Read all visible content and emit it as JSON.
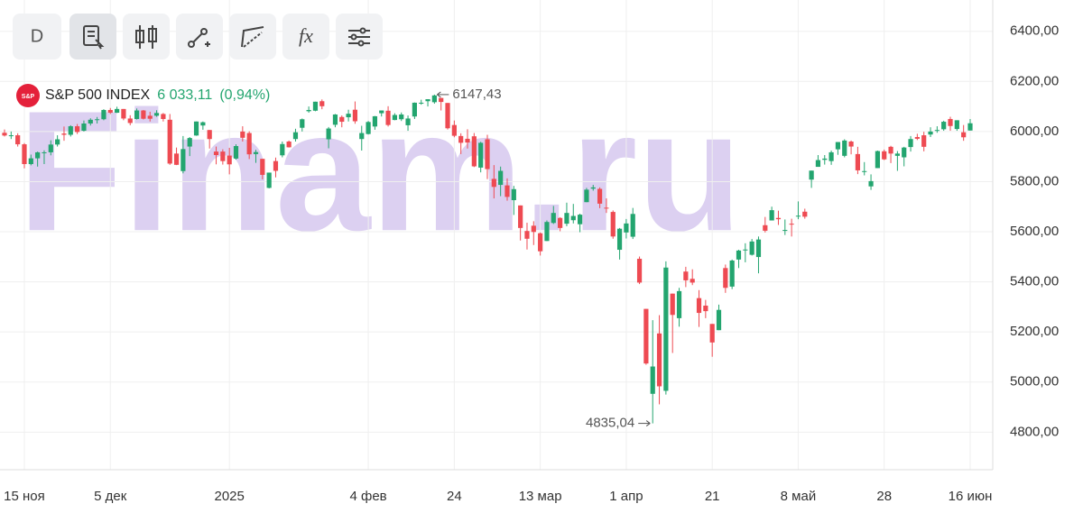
{
  "toolbar": {
    "interval": "D",
    "function_icon": "fx"
  },
  "chart_data": {
    "type": "candlestick",
    "watermark": "Finam.ru",
    "logo": "S&P",
    "name": "S&P 500 INDEX",
    "last": {
      "value": 6033.11,
      "label": "6 033,11"
    },
    "change": {
      "value": 0.94,
      "label": "(0,94%)"
    },
    "up_color": "#23a56f",
    "down_color": "#ee4a52",
    "grid": true,
    "ylim": [
      4650,
      6525
    ],
    "yticks": [
      {
        "value": 4800,
        "label": "4800,00"
      },
      {
        "value": 5000,
        "label": "5000,00"
      },
      {
        "value": 5200,
        "label": "5200,00"
      },
      {
        "value": 5400,
        "label": "5400,00"
      },
      {
        "value": 5600,
        "label": "5600,00"
      },
      {
        "value": 5800,
        "label": "5800,00"
      },
      {
        "value": 6000,
        "label": "6000,00"
      },
      {
        "value": 6200,
        "label": "6200,00"
      },
      {
        "value": 6400,
        "label": "6400,00"
      }
    ],
    "annotations": [
      {
        "value": 6147.43,
        "label": "6147,43"
      },
      {
        "value": 4835.04,
        "label": "4835,04"
      }
    ],
    "categories": [
      null,
      null,
      null,
      "15 ноя",
      null,
      null,
      null,
      null,
      null,
      null,
      null,
      null,
      null,
      null,
      null,
      null,
      "5 дек",
      null,
      null,
      null,
      null,
      null,
      null,
      null,
      null,
      null,
      null,
      null,
      null,
      null,
      null,
      null,
      null,
      null,
      "2025",
      null,
      null,
      null,
      null,
      null,
      null,
      null,
      null,
      null,
      null,
      null,
      null,
      null,
      null,
      null,
      null,
      null,
      null,
      null,
      null,
      "4 фев",
      null,
      null,
      null,
      null,
      null,
      null,
      null,
      null,
      null,
      null,
      null,
      null,
      "24",
      null,
      null,
      null,
      null,
      null,
      null,
      null,
      null,
      null,
      null,
      null,
      null,
      "13 мар",
      null,
      null,
      null,
      null,
      null,
      null,
      null,
      null,
      null,
      null,
      null,
      null,
      "1 апр",
      null,
      null,
      null,
      null,
      null,
      null,
      null,
      null,
      null,
      null,
      null,
      null,
      "21",
      null,
      null,
      null,
      null,
      null,
      null,
      null,
      null,
      null,
      null,
      null,
      null,
      "8 май",
      null,
      null,
      null,
      null,
      null,
      null,
      null,
      null,
      null,
      null,
      null,
      null,
      "28",
      null,
      null,
      null,
      null,
      null,
      null,
      null,
      null,
      null,
      null,
      null,
      null,
      "16 июн"
    ],
    "candles": [
      [
        5995,
        6008,
        5980,
        5984
      ],
      [
        5984,
        6000,
        5970,
        5985
      ],
      [
        5985,
        5993,
        5940,
        5949
      ],
      [
        5949,
        5954,
        5853,
        5870
      ],
      [
        5870,
        5908,
        5865,
        5893
      ],
      [
        5893,
        5920,
        5860,
        5917
      ],
      [
        5917,
        5925,
        5870,
        5917
      ],
      [
        5917,
        5965,
        5905,
        5948
      ],
      [
        5948,
        5985,
        5940,
        5969
      ],
      [
        5992,
        6020,
        5963,
        5987
      ],
      [
        5987,
        6025,
        5980,
        6021
      ],
      [
        6021,
        6030,
        5990,
        5998
      ],
      [
        6003,
        6044,
        6000,
        6032
      ],
      [
        6032,
        6053,
        6024,
        6047
      ],
      [
        6047,
        6058,
        6032,
        6049
      ],
      [
        6049,
        6089,
        6045,
        6086
      ],
      [
        6086,
        6094,
        6070,
        6075
      ],
      [
        6075,
        6099,
        6074,
        6090
      ],
      [
        6090,
        6090,
        6045,
        6052
      ],
      [
        6052,
        6065,
        6025,
        6034
      ],
      [
        6050,
        6092,
        6048,
        6084
      ],
      [
        6084,
        6086,
        6048,
        6051
      ],
      [
        6063,
        6079,
        6040,
        6051
      ],
      [
        6063,
        6085,
        6059,
        6074
      ],
      [
        6070,
        6074,
        6040,
        6050
      ],
      [
        6047,
        6070,
        5867,
        5872
      ],
      [
        5912,
        5936,
        5866,
        5867
      ],
      [
        5842,
        5982,
        5833,
        5930
      ],
      [
        5940,
        5978,
        5902,
        5974
      ],
      [
        5984,
        6040,
        5983,
        6040
      ],
      [
        6024,
        6040,
        6007,
        6037
      ],
      [
        6006,
        6006,
        5932,
        5970
      ],
      [
        5920,
        5940,
        5869,
        5906
      ],
      [
        5920,
        5929,
        5868,
        5882
      ],
      [
        5904,
        5935,
        5829,
        5869
      ],
      [
        5892,
        5949,
        5888,
        5942
      ],
      [
        6000,
        6021,
        5960,
        5975
      ],
      [
        5994,
        6001,
        5890,
        5909
      ],
      [
        5910,
        5927,
        5875,
        5918
      ],
      [
        5891,
        5891,
        5809,
        5827
      ],
      [
        5775,
        5836,
        5773,
        5836
      ],
      [
        5882,
        5896,
        5817,
        5843
      ],
      [
        5905,
        5960,
        5897,
        5950
      ],
      [
        5960,
        5964,
        5936,
        5937
      ],
      [
        5970,
        6011,
        5960,
        5997
      ],
      [
        6015,
        6052,
        6000,
        6049
      ],
      [
        6081,
        6100,
        6075,
        6086
      ],
      [
        6083,
        6119,
        6081,
        6119
      ],
      [
        6121,
        6128,
        6089,
        6101
      ],
      [
        5969,
        6018,
        5933,
        6012
      ],
      [
        6027,
        6070,
        6017,
        6068
      ],
      [
        6058,
        6064,
        6017,
        6039
      ],
      [
        6057,
        6087,
        6040,
        6071
      ],
      [
        6087,
        6120,
        6031,
        6041
      ],
      [
        5970,
        6023,
        5924,
        5994
      ],
      [
        5990,
        6042,
        5988,
        6038
      ],
      [
        6020,
        6062,
        6007,
        6061
      ],
      [
        6073,
        6084,
        6060,
        6084
      ],
      [
        6083,
        6101,
        6020,
        6026
      ],
      [
        6046,
        6073,
        6045,
        6066
      ],
      [
        6049,
        6076,
        6042,
        6068
      ],
      [
        6025,
        6064,
        6003,
        6052
      ],
      [
        6060,
        6116,
        6050,
        6115
      ],
      [
        6115,
        6127,
        6107,
        6115
      ],
      [
        6121,
        6129,
        6100,
        6129
      ],
      [
        6117,
        6147.43,
        6111,
        6144
      ],
      [
        6134,
        6134,
        6084,
        6118
      ],
      [
        6114,
        6114,
        6008,
        6013
      ],
      [
        6026,
        6044,
        5977,
        5983
      ],
      [
        5982,
        5993,
        5910,
        5955
      ],
      [
        5971,
        6009,
        5932,
        5956
      ],
      [
        5981,
        5994,
        5858,
        5861
      ],
      [
        5856,
        5959,
        5837,
        5955
      ],
      [
        5969,
        5987,
        5810,
        5850
      ],
      [
        5811,
        5866,
        5733,
        5779
      ],
      [
        5787,
        5860,
        5742,
        5843
      ],
      [
        5785,
        5813,
        5724,
        5739
      ],
      [
        5726,
        5783,
        5667,
        5770
      ],
      [
        5705,
        5705,
        5565,
        5615
      ],
      [
        5603,
        5636,
        5529,
        5572
      ],
      [
        5624,
        5642,
        5547,
        5599
      ],
      [
        5594,
        5597,
        5505,
        5522
      ],
      [
        5563,
        5645,
        5563,
        5639
      ],
      [
        5635,
        5703,
        5631,
        5675
      ],
      [
        5655,
        5658,
        5602,
        5615
      ],
      [
        5632,
        5716,
        5622,
        5675
      ],
      [
        5646,
        5711,
        5633,
        5663
      ],
      [
        5630,
        5672,
        5598,
        5668
      ],
      [
        5718,
        5775,
        5718,
        5768
      ],
      [
        5772,
        5787,
        5764,
        5777
      ],
      [
        5771,
        5777,
        5694,
        5712
      ],
      [
        5696,
        5733,
        5675,
        5693
      ],
      [
        5679,
        5685,
        5572,
        5581
      ],
      [
        5528,
        5615,
        5489,
        5612
      ],
      [
        5597,
        5651,
        5573,
        5633
      ],
      [
        5580,
        5695,
        5571,
        5671
      ],
      [
        5492,
        5501,
        5391,
        5397
      ],
      [
        5292,
        5292,
        5069,
        5074
      ],
      [
        4953,
        5247,
        4835.04,
        5062
      ],
      [
        5194,
        5267,
        4911,
        4983
      ],
      [
        4965,
        5482,
        4950,
        5457
      ],
      [
        5353,
        5353,
        5116,
        5268
      ],
      [
        5255,
        5376,
        5221,
        5363
      ],
      [
        5441,
        5460,
        5379,
        5406
      ],
      [
        5412,
        5450,
        5387,
        5397
      ],
      [
        5335,
        5367,
        5220,
        5276
      ],
      [
        5305,
        5328,
        5255,
        5283
      ],
      [
        5232,
        5232,
        5101,
        5158
      ],
      [
        5207,
        5309,
        5207,
        5288
      ],
      [
        5455,
        5469,
        5356,
        5376
      ],
      [
        5381,
        5489,
        5371,
        5485
      ],
      [
        5489,
        5528,
        5455,
        5525
      ],
      [
        5529,
        5554,
        5478,
        5529
      ],
      [
        5508,
        5571,
        5505,
        5561
      ],
      [
        5499,
        5581,
        5434,
        5569
      ],
      [
        5626,
        5659,
        5597,
        5604
      ],
      [
        5645,
        5700,
        5645,
        5686
      ],
      [
        5655,
        5684,
        5627,
        5650
      ],
      [
        5606,
        5649,
        5587,
        5607
      ],
      [
        5632,
        5652,
        5581,
        5631
      ],
      [
        5663,
        5721,
        5650,
        5664
      ],
      [
        5680,
        5692,
        5652,
        5660
      ],
      [
        5808,
        5844,
        5775,
        5844
      ],
      [
        5859,
        5906,
        5859,
        5886
      ],
      [
        5887,
        5906,
        5868,
        5892
      ],
      [
        5882,
        5924,
        5867,
        5917
      ],
      [
        5929,
        5958,
        5907,
        5958
      ],
      [
        5903,
        5969,
        5897,
        5964
      ],
      [
        5960,
        5964,
        5909,
        5940
      ],
      [
        5910,
        5939,
        5830,
        5845
      ],
      [
        5842,
        5878,
        5825,
        5842
      ],
      [
        5781,
        5829,
        5767,
        5802
      ],
      [
        5854,
        5924,
        5854,
        5922
      ],
      [
        5921,
        5928,
        5886,
        5889
      ],
      [
        5939,
        5943,
        5874,
        5912
      ],
      [
        5903,
        5922,
        5843,
        5912
      ],
      [
        5897,
        5939,
        5861,
        5936
      ],
      [
        5938,
        5982,
        5920,
        5970
      ],
      [
        5978,
        5991,
        5966,
        5971
      ],
      [
        5985,
        5999,
        5921,
        5939
      ],
      [
        5988,
        6017,
        5978,
        6000
      ],
      [
        6005,
        6021,
        5995,
        6006
      ],
      [
        6009,
        6043,
        6003,
        6039
      ],
      [
        6050,
        6059,
        6003,
        6022
      ],
      [
        6010,
        6045,
        6003,
        6045
      ],
      [
        5997,
        6026,
        5963,
        5977
      ],
      [
        6004,
        6050,
        6004,
        6033
      ]
    ]
  }
}
